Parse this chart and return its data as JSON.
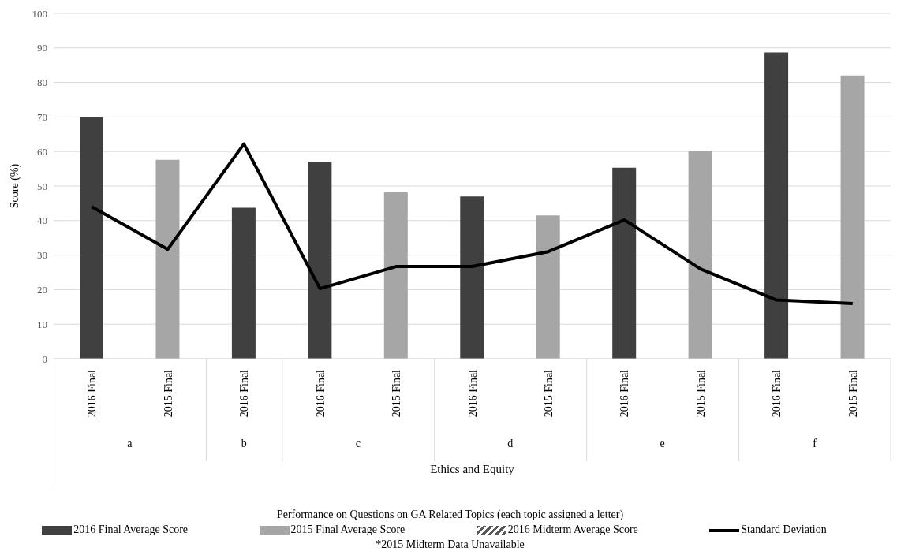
{
  "chart_data": {
    "type": "bar",
    "ylabel": "Score (%)",
    "xlabel": "Ethics and Equity",
    "legend_title": "Performance on Questions on GA Related Topics (each topic assigned a letter)",
    "categories": [
      "2016 Final",
      "2015 Final",
      "2016 Final",
      "2016 Final",
      "2015 Final",
      "2016 Final",
      "2015 Final",
      "2016 Final",
      "2015 Final",
      "2016 Final",
      "2015 Final"
    ],
    "series": [
      {
        "name": "2016 Final Average Score",
        "color": "#404040",
        "values": [
          70,
          null,
          43.7,
          57,
          null,
          47,
          null,
          55.3,
          null,
          88.7,
          null
        ]
      },
      {
        "name": "2015 Final Average Score",
        "color": "#a6a6a6",
        "values": [
          null,
          57.6,
          null,
          null,
          48.2,
          null,
          41.5,
          null,
          60.3,
          null,
          82
        ]
      },
      {
        "name": "2016 Midterm Average Score",
        "color": "#595959",
        "values": [
          null,
          null,
          null,
          null,
          null,
          null,
          null,
          null,
          null,
          null,
          null
        ]
      },
      {
        "name": "Standard Deviation",
        "type": "line",
        "color": "#000000",
        "values": [
          44,
          31.7,
          62.2,
          20.3,
          26.7,
          26.7,
          31,
          40.2,
          26,
          17,
          16
        ]
      }
    ],
    "ylim": [
      0,
      100
    ],
    "yticks": [
      0,
      10,
      20,
      30,
      40,
      50,
      60,
      70,
      80,
      90,
      100
    ],
    "grid": "y",
    "legend": "bottom",
    "marker": "none",
    "annotations": [
      "a",
      "b",
      "c",
      "d",
      "e",
      "f",
      "*2015 Midterm Data Unavailable"
    ]
  }
}
